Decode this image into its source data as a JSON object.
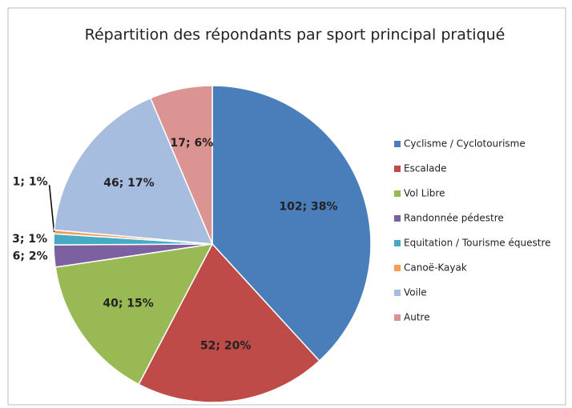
{
  "chart_data": {
    "type": "pie",
    "title": "Répartition des répondants par sport principal pratiqué",
    "categories": [
      "Cyclisme / Cyclotourisme",
      "Escalade",
      "Vol Libre",
      "Randonnée pédestre",
      "Equitation / Tourisme équestre",
      "Canoë-Kayak",
      "Voile",
      "Autre"
    ],
    "values": [
      102,
      52,
      40,
      6,
      3,
      1,
      46,
      17
    ],
    "value_labels": [
      "102; 38%",
      "52; 20%",
      "40; 15%",
      "6; 2%",
      "3; 1%",
      "1; 1%",
      "46; 17%",
      "17; 6%"
    ],
    "colors": [
      "#4a7ebb",
      "#be4b48",
      "#98b954",
      "#7d60a0",
      "#46aac5",
      "#f59d56",
      "#a7bde0",
      "#dc9492"
    ],
    "legend": "right"
  }
}
